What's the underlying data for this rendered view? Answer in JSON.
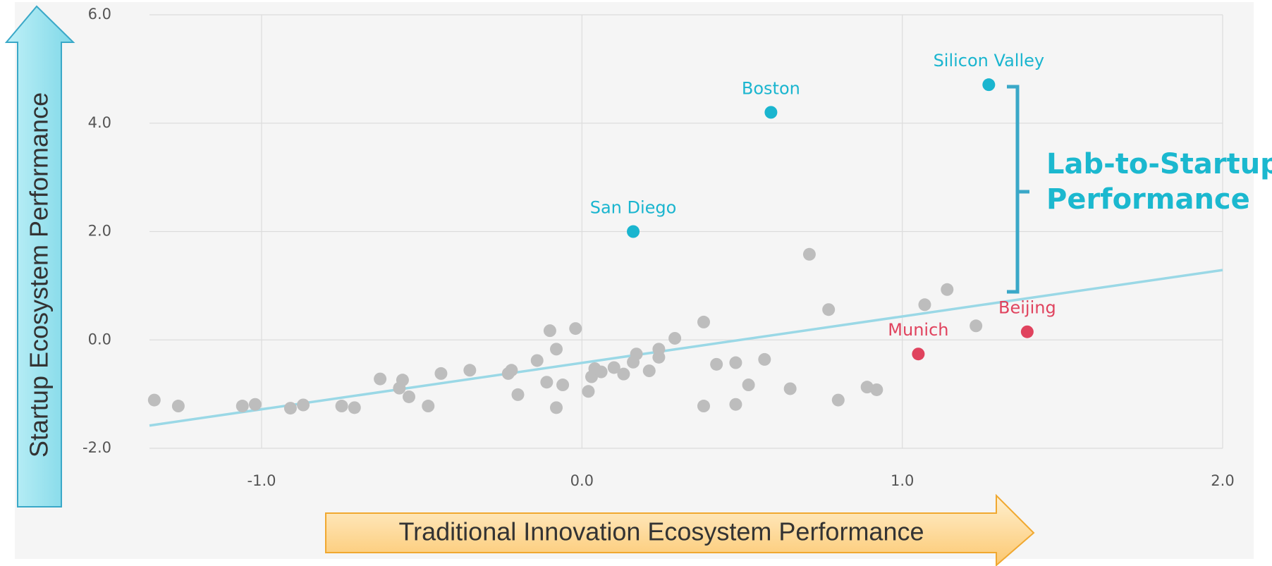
{
  "chart_data": {
    "type": "scatter",
    "xlabel": "Traditional Innovation Ecosystem Performance",
    "ylabel": "Startup  Ecosystem Performance",
    "annotation": [
      "Lab-to-Startup",
      "Performance"
    ],
    "xlim": [
      -1.35,
      2.0
    ],
    "ylim": [
      -2.0,
      6.0
    ],
    "xticks": [
      {
        "value": -1,
        "label": "-1.0"
      },
      {
        "value": 0,
        "label": "0.0"
      },
      {
        "value": 1,
        "label": "1.0"
      },
      {
        "value": 2,
        "label": "2.0"
      }
    ],
    "yticks": [
      {
        "value": -2,
        "label": "-2.0"
      },
      {
        "value": 0,
        "label": "0.0"
      },
      {
        "value": 2,
        "label": "2.0"
      },
      {
        "value": 4,
        "label": "4.0"
      },
      {
        "value": 6,
        "label": "6.0"
      }
    ],
    "grid": true,
    "trendline": {
      "color": "#9ad8e6",
      "x": [
        -1.35,
        2.0
      ],
      "y": [
        -1.58,
        1.29
      ]
    },
    "series": [
      {
        "color": "#bdbdbd",
        "x": [
          -1.335,
          -1.26,
          -1.06,
          -1.02,
          -0.91,
          -0.87,
          -0.75,
          -0.71,
          -0.63,
          -0.57,
          -0.56,
          -0.54,
          -0.48,
          -0.44,
          -0.35,
          -0.23,
          -0.22,
          -0.2,
          -0.14,
          -0.11,
          -0.1,
          -0.08,
          -0.08,
          -0.06,
          -0.02,
          0.02,
          0.03,
          0.04,
          0.06,
          0.1,
          0.13,
          0.16,
          0.17,
          0.21,
          0.24,
          0.24,
          0.29,
          0.38,
          0.38,
          0.42,
          0.48,
          0.48,
          0.52,
          0.57,
          0.65,
          0.71,
          0.77,
          0.8,
          0.89,
          0.92,
          1.07,
          1.14,
          1.23
        ],
        "values": [
          -1.11,
          -1.22,
          -1.22,
          -1.19,
          -1.26,
          -1.2,
          -1.22,
          -1.25,
          -0.72,
          -0.89,
          -0.74,
          -1.05,
          -1.22,
          -0.62,
          -0.56,
          -0.62,
          -0.56,
          -1.01,
          -0.38,
          -0.78,
          0.17,
          -1.25,
          -0.17,
          -0.83,
          0.21,
          -0.95,
          -0.68,
          -0.53,
          -0.59,
          -0.51,
          -0.63,
          -0.41,
          -0.26,
          -0.57,
          -0.17,
          -0.32,
          0.03,
          0.33,
          -1.22,
          -0.45,
          -0.42,
          -1.19,
          -0.83,
          -0.36,
          -0.9,
          1.58,
          0.56,
          -1.11,
          -0.87,
          -0.92,
          0.65,
          0.93,
          0.26
        ]
      },
      {
        "color": "#1ab5cf",
        "labels": [
          "San Diego",
          "Boston",
          "Silicon Valley"
        ],
        "x": [
          0.16,
          0.59,
          1.27
        ],
        "values": [
          2.0,
          4.2,
          4.71
        ]
      },
      {
        "color": "#e0435e",
        "labels": [
          "Munich",
          "Beijing"
        ],
        "x": [
          1.05,
          1.39
        ],
        "values": [
          -0.26,
          0.15
        ]
      }
    ]
  }
}
